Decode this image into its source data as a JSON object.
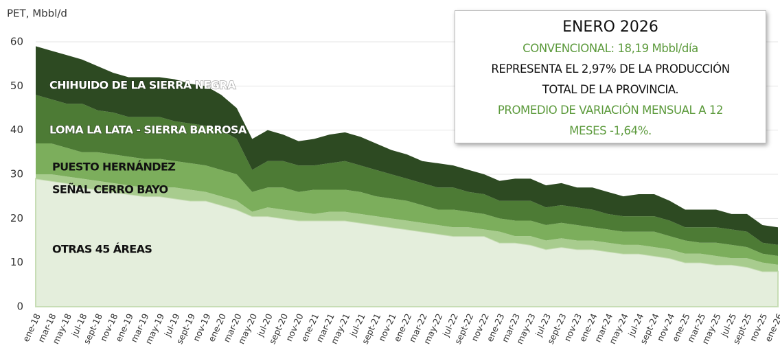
{
  "chart_data": {
    "type": "stacked_area",
    "ylabel": "PET, Mbbl/d",
    "categories": [
      "ene-18",
      "mar-18",
      "may-18",
      "jul-18",
      "sept-18",
      "nov-18",
      "ene-19",
      "mar-19",
      "may-19",
      "jul-19",
      "sept-19",
      "nov-19",
      "ene-20",
      "mar-20",
      "may-20",
      "jul-20",
      "sept-20",
      "nov-20",
      "ene-21",
      "mar-21",
      "may-21",
      "jul-21",
      "sept-21",
      "nov-21",
      "ene-22",
      "mar-22",
      "may-22",
      "jul-22",
      "sept-22",
      "nov-22",
      "ene-23",
      "mar-23",
      "may-23",
      "jul-23",
      "sept-23",
      "nov-23",
      "ene-24",
      "mar-24",
      "may-24",
      "jul-24",
      "sept-24",
      "nov-24",
      "ene-25",
      "mar-25",
      "may-25",
      "jul-25",
      "sept-25",
      "nov-25",
      "ene-26"
    ],
    "series": [
      {
        "name": "OTRAS 45 ÁREAS",
        "color": "#e4eedc",
        "label_color": "#111",
        "values": [
          29,
          28.5,
          28,
          27,
          26.5,
          26,
          25.5,
          25,
          25,
          24.5,
          24,
          24,
          23,
          22,
          20.5,
          20.5,
          20,
          19.5,
          19.5,
          19.5,
          19.5,
          19,
          18.5,
          18,
          17.5,
          17,
          16.5,
          16,
          16,
          16,
          14.5,
          14.5,
          14,
          13,
          13.5,
          13,
          13,
          12.5,
          12,
          12,
          11.5,
          11,
          10,
          10,
          9.5,
          9.5,
          9,
          8,
          8
        ]
      },
      {
        "name": "SEÑAL CERRO BAYO",
        "color": "#a8cc8e",
        "label_color": "#111",
        "values": [
          1,
          1.5,
          1.5,
          2,
          2,
          2,
          2,
          2,
          2,
          2.5,
          2.5,
          2,
          2,
          2,
          1,
          2,
          2,
          2,
          1.5,
          2,
          2,
          2,
          2,
          2,
          2,
          2,
          2,
          2,
          2,
          1.5,
          2.5,
          1.5,
          2,
          2,
          2,
          2,
          2,
          2,
          2,
          2,
          2,
          2,
          2,
          2,
          2,
          1.5,
          2,
          2,
          1.5
        ]
      },
      {
        "name": "PUESTO HERNÁNDEZ",
        "color": "#7cae5c",
        "label_color": "#111",
        "values": [
          7,
          7,
          6.5,
          6,
          6.5,
          6.5,
          6.5,
          6.5,
          6.5,
          6,
          6,
          6,
          6,
          6,
          4.5,
          4.5,
          5,
          4.5,
          5.5,
          5,
          5,
          5,
          4.5,
          4.5,
          4.5,
          4,
          3.5,
          4,
          3.5,
          3.5,
          3,
          3.5,
          3.5,
          3.5,
          3.5,
          3.5,
          3,
          3,
          3,
          3,
          3.5,
          3,
          3,
          2.5,
          3,
          3,
          2.5,
          2,
          2
        ]
      },
      {
        "name": "LOMA LA LATA - SIERRA BARROSA",
        "color": "#4d7b35",
        "label_color": "#fff",
        "values": [
          11,
          10,
          10,
          11,
          9.5,
          9.5,
          9,
          9.5,
          9.5,
          9,
          9,
          9,
          9,
          8,
          5,
          6,
          6,
          6,
          5.5,
          6,
          6.5,
          6,
          6,
          5.5,
          5,
          5,
          5,
          5,
          4.5,
          4.5,
          4,
          4.5,
          4.5,
          4,
          4,
          4,
          4,
          3.5,
          3.5,
          3.5,
          3.5,
          3.5,
          3,
          3.5,
          3.5,
          3.5,
          3.5,
          2.5,
          2.5
        ]
      },
      {
        "name": "CHIHUIDO DE LA SIERRA NEGRA",
        "color": "#2d4a22",
        "label_color": "#fff",
        "values": [
          11,
          11,
          11,
          10,
          10,
          9,
          9,
          9,
          9,
          9.5,
          9,
          9,
          8,
          7,
          7,
          7,
          6,
          5.5,
          6,
          6.5,
          6.5,
          6.5,
          6,
          5.5,
          5.5,
          5,
          5.5,
          5,
          5,
          4.5,
          4.5,
          5,
          5,
          5,
          5,
          4.5,
          5,
          5,
          4.5,
          5,
          5,
          4.5,
          4,
          4,
          4,
          3.5,
          4,
          4,
          4
        ]
      }
    ],
    "ylim": [
      0,
      60
    ],
    "yticks": [
      0,
      10,
      20,
      30,
      40,
      50,
      60
    ],
    "grid": true,
    "annotation": {
      "title": "ENERO 2026",
      "lines": [
        {
          "text": "CONVENCIONAL: 18,19 Mbbl/día",
          "color": "#5c9a3c"
        },
        {
          "text": "REPRESENTA EL 2,97% DE LA PRODUCCIÓN",
          "color": "#111111"
        },
        {
          "text": "TOTAL DE LA PROVINCIA.",
          "color": "#111111"
        },
        {
          "text": "PROMEDIO DE VARIACIÓN MENSUAL A 12",
          "color": "#5c9a3c"
        },
        {
          "text": "MESES -1,64%.",
          "color": "#5c9a3c"
        }
      ]
    }
  }
}
